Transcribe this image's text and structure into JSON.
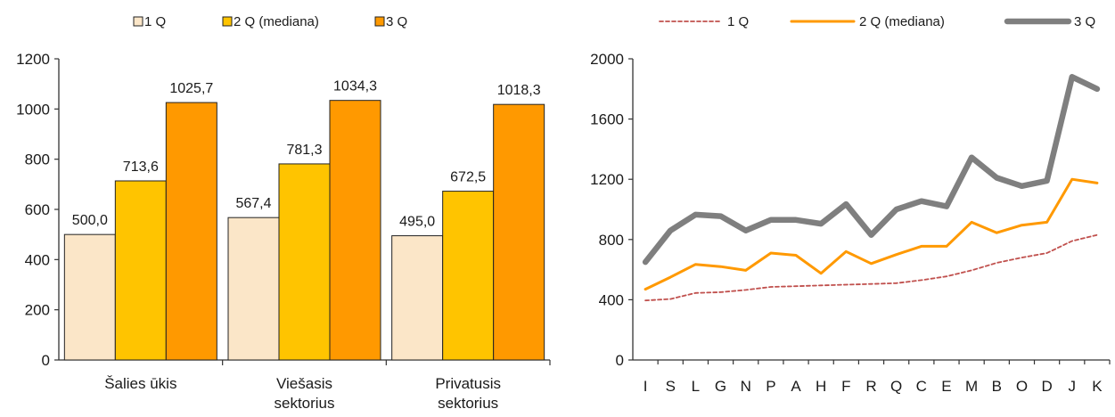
{
  "colors": {
    "q1_bar": "#FBE6C8",
    "q2_bar": "#FFC400",
    "q3_bar": "#FF9900",
    "bar_edge": "#222222",
    "q1_line": "#C0504D",
    "q2_line": "#FF9900",
    "q3_line": "#7F7F7F",
    "axis": "#333333"
  },
  "chart_data": [
    {
      "type": "bar",
      "categories": [
        [
          "Šalies ūkis"
        ],
        [
          "Viešasis",
          "sektorius"
        ],
        [
          "Privatusis",
          "sektorius"
        ]
      ],
      "series": [
        {
          "name": "1 Q",
          "values": [
            500.0,
            567.4,
            495.0
          ],
          "labels": [
            "500,0",
            "567,4",
            "495,0"
          ]
        },
        {
          "name": "2 Q (mediana)",
          "values": [
            713.6,
            781.3,
            672.5
          ],
          "labels": [
            "713,6",
            "781,3",
            "672,5"
          ]
        },
        {
          "name": "3 Q",
          "values": [
            1025.7,
            1034.3,
            1018.3
          ],
          "labels": [
            "1025,7",
            "1034,3",
            "1018,3"
          ]
        }
      ],
      "ylim": [
        0,
        1200
      ],
      "yticks": [
        "0",
        "200",
        "400",
        "600",
        "800",
        "1000",
        "1200"
      ],
      "legend": "top",
      "grid": false
    },
    {
      "type": "line",
      "categories": [
        "I",
        "S",
        "L",
        "G",
        "N",
        "P",
        "A",
        "H",
        "F",
        "R",
        "Q",
        "C",
        "E",
        "M",
        "B",
        "O",
        "D",
        "J",
        "K"
      ],
      "series": [
        {
          "name": "1 Q",
          "style": "dashed",
          "values": [
            395,
            405,
            445,
            450,
            465,
            485,
            490,
            495,
            500,
            505,
            510,
            530,
            555,
            595,
            645,
            680,
            710,
            790,
            830
          ]
        },
        {
          "name": "2 Q (mediana)",
          "style": "solid",
          "values": [
            470,
            550,
            635,
            620,
            595,
            710,
            695,
            575,
            720,
            640,
            700,
            755,
            755,
            915,
            845,
            895,
            915,
            1200,
            1175
          ]
        },
        {
          "name": "3 Q",
          "style": "thick",
          "values": [
            650,
            860,
            965,
            955,
            860,
            930,
            930,
            905,
            1035,
            830,
            1000,
            1055,
            1020,
            1345,
            1210,
            1155,
            1190,
            1880,
            1800
          ]
        }
      ],
      "ylim": [
        0,
        2000
      ],
      "yticks": [
        "0",
        "400",
        "800",
        "1200",
        "1600",
        "2000"
      ],
      "legend": "top",
      "grid": false
    }
  ]
}
